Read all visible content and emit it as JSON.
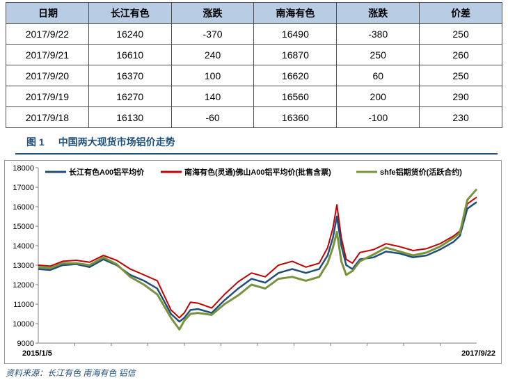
{
  "table": {
    "headers": [
      "日期",
      "长江有色",
      "涨跌",
      "南海有色",
      "涨跌",
      "价差"
    ],
    "rows": [
      [
        "2017/9/22",
        "16240",
        "-370",
        "16490",
        "-380",
        "250"
      ],
      [
        "2017/9/21",
        "16610",
        "240",
        "16870",
        "250",
        "260"
      ],
      [
        "2017/9/20",
        "16370",
        "100",
        "16620",
        "60",
        "250"
      ],
      [
        "2017/9/19",
        "16270",
        "140",
        "16560",
        "200",
        "290"
      ],
      [
        "2017/9/18",
        "16130",
        "-60",
        "16360",
        "-100",
        "230"
      ]
    ]
  },
  "figure": {
    "number": "图 1",
    "title": "中国两大现货市场铝价走势"
  },
  "source": "资料来源：长江有色   南海有色   铝信",
  "chart_data": {
    "type": "line",
    "title": "",
    "xlabel": "",
    "ylabel": "",
    "x_tick_labels": [
      "2015/1/5",
      "2017/9/22"
    ],
    "ylim": [
      9000,
      18000
    ],
    "y_ticks": [
      9000,
      10000,
      11000,
      12000,
      13000,
      14000,
      15000,
      16000,
      17000,
      18000
    ],
    "grid": false,
    "legend_position": "top",
    "x": [
      "2015/1/5",
      "2015/2/1",
      "2015/3/1",
      "2015/4/1",
      "2015/5/1",
      "2015/6/1",
      "2015/7/1",
      "2015/8/1",
      "2015/9/1",
      "2015/10/1",
      "2015/11/1",
      "2015/11/20",
      "2015/12/1",
      "2015/12/15",
      "2016/1/1",
      "2016/2/1",
      "2016/3/1",
      "2016/4/1",
      "2016/5/1",
      "2016/6/1",
      "2016/7/1",
      "2016/8/1",
      "2016/9/1",
      "2016/10/1",
      "2016/10/20",
      "2016/11/1",
      "2016/11/10",
      "2016/11/20",
      "2016/12/1",
      "2016/12/15",
      "2017/1/1",
      "2017/2/1",
      "2017/3/1",
      "2017/4/1",
      "2017/5/1",
      "2017/6/1",
      "2017/7/1",
      "2017/8/1",
      "2017/8/15",
      "2017/9/1",
      "2017/9/22"
    ],
    "series": [
      {
        "name": "长江有色A00铝平均价",
        "color": "#1f4e79",
        "values": [
          12800,
          12750,
          13000,
          13050,
          12900,
          13300,
          13000,
          12500,
          12200,
          11800,
          10500,
          10100,
          10300,
          10700,
          10750,
          10550,
          11200,
          11800,
          12300,
          12100,
          12600,
          12800,
          12600,
          12800,
          13500,
          14400,
          15500,
          14000,
          13000,
          12800,
          13300,
          13400,
          13700,
          13600,
          13400,
          13500,
          13800,
          14200,
          14500,
          15900,
          16240
        ]
      },
      {
        "name": "南海有色(灵通)佛山A00铝平均价(批售含票)",
        "color": "#c00000",
        "values": [
          13000,
          12950,
          13200,
          13250,
          13150,
          13500,
          13250,
          12800,
          12500,
          12200,
          10700,
          10300,
          10550,
          11100,
          11050,
          10800,
          11500,
          12150,
          12600,
          12400,
          13000,
          13200,
          12900,
          13100,
          13900,
          14900,
          16100,
          14400,
          13300,
          13100,
          13650,
          13800,
          14100,
          13950,
          13750,
          13850,
          14100,
          14500,
          14750,
          16150,
          16490
        ]
      },
      {
        "name": "shfe铝期货价(活跃合约)",
        "color": "#77933c",
        "values": [
          12900,
          12850,
          13100,
          13100,
          13000,
          13400,
          13050,
          12400,
          12000,
          11500,
          10300,
          9700,
          10150,
          10500,
          10550,
          10450,
          11000,
          11450,
          12000,
          11800,
          12300,
          12400,
          12200,
          12400,
          13100,
          13900,
          14700,
          13200,
          12500,
          12700,
          13200,
          13550,
          13900,
          13700,
          13500,
          13650,
          13950,
          14400,
          14650,
          16350,
          16900
        ]
      }
    ]
  }
}
